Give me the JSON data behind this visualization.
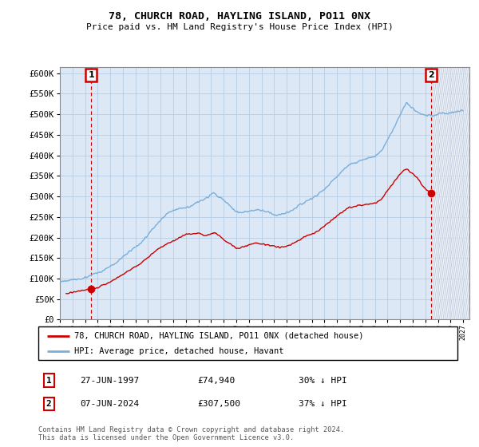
{
  "title": "78, CHURCH ROAD, HAYLING ISLAND, PO11 0NX",
  "subtitle": "Price paid vs. HM Land Registry's House Price Index (HPI)",
  "ylabel_ticks": [
    "£0",
    "£50K",
    "£100K",
    "£150K",
    "£200K",
    "£250K",
    "£300K",
    "£350K",
    "£400K",
    "£450K",
    "£500K",
    "£550K",
    "£600K"
  ],
  "ytick_values": [
    0,
    50000,
    100000,
    150000,
    200000,
    250000,
    300000,
    350000,
    400000,
    450000,
    500000,
    550000,
    600000
  ],
  "xlim": [
    1995.0,
    2027.5
  ],
  "ylim": [
    0,
    615000
  ],
  "legend_line1": "78, CHURCH ROAD, HAYLING ISLAND, PO11 0NX (detached house)",
  "legend_line2": "HPI: Average price, detached house, Havant",
  "point1_date": "27-JUN-1997",
  "point1_price": "£74,940",
  "point1_hpi": "30% ↓ HPI",
  "point1_x": 1997.49,
  "point1_y": 74940,
  "point2_date": "07-JUN-2024",
  "point2_price": "£307,500",
  "point2_hpi": "37% ↓ HPI",
  "point2_x": 2024.44,
  "point2_y": 307500,
  "footer": "Contains HM Land Registry data © Crown copyright and database right 2024.\nThis data is licensed under the Open Government Licence v3.0.",
  "hpi_color": "#7aafdb",
  "price_color": "#cc0000",
  "background_color": "#dce8f5",
  "grid_color": "#b0c8e0",
  "hatch_color": "#c0c8d8",
  "box_color": "#cc0000"
}
